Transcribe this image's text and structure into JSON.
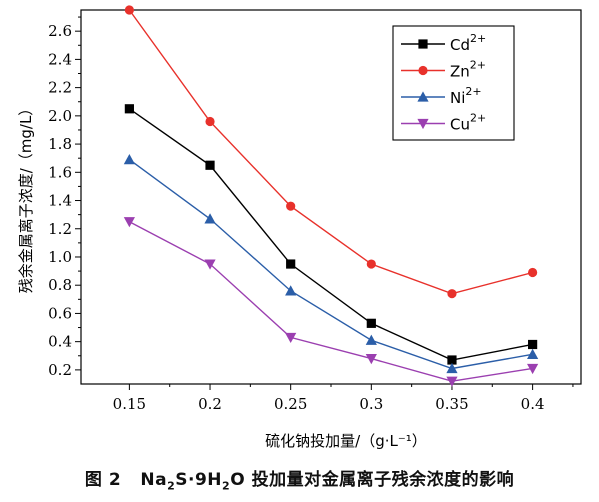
{
  "chart_data": {
    "type": "line",
    "xlabel": "硫化钠投加量/（g·L⁻¹）",
    "ylabel": "残余金属离子浓度/（mg/L）",
    "x": [
      0.15,
      0.2,
      0.25,
      0.3,
      0.35,
      0.4
    ],
    "x_tick_labels": [
      "0.15",
      "0.2",
      "0.25",
      "0.3",
      "0.35",
      "0.4"
    ],
    "xlim": [
      0.12,
      0.43
    ],
    "ylim": [
      0.1,
      2.75
    ],
    "y_ticks": [
      0.2,
      0.4,
      0.6,
      0.8,
      1.0,
      1.2,
      1.4,
      1.6,
      1.8,
      2.0,
      2.2,
      2.4,
      2.6
    ],
    "y_tick_labels": [
      "0.2",
      "0.4",
      "0.6",
      "0.8",
      "1.0",
      "1.2",
      "1.4",
      "1.6",
      "1.8",
      "2.0",
      "2.2",
      "2.4",
      "2.6"
    ],
    "grid": false,
    "legend_position": "top-right",
    "series": [
      {
        "name": "Cd",
        "charge": "2+",
        "color": "#000000",
        "marker": "square",
        "values": [
          2.05,
          1.65,
          0.95,
          0.53,
          0.27,
          0.38
        ]
      },
      {
        "name": "Zn",
        "charge": "2+",
        "color": "#e8312b",
        "marker": "circle",
        "values": [
          2.75,
          1.96,
          1.36,
          0.95,
          0.74,
          0.89
        ]
      },
      {
        "name": "Ni",
        "charge": "2+",
        "color": "#2b5ea8",
        "marker": "triangle-up",
        "values": [
          1.69,
          1.27,
          0.76,
          0.41,
          0.21,
          0.31
        ]
      },
      {
        "name": "Cu",
        "charge": "2+",
        "color": "#9b3fb0",
        "marker": "triangle-down",
        "values": [
          1.25,
          0.95,
          0.43,
          0.28,
          0.12,
          0.21
        ]
      }
    ]
  },
  "caption": {
    "figure_label": "图 2",
    "formula_parts": [
      "Na",
      "2",
      "S·9H",
      "2",
      "O"
    ],
    "text": "投加量对金属离子残余浓度的影响"
  }
}
